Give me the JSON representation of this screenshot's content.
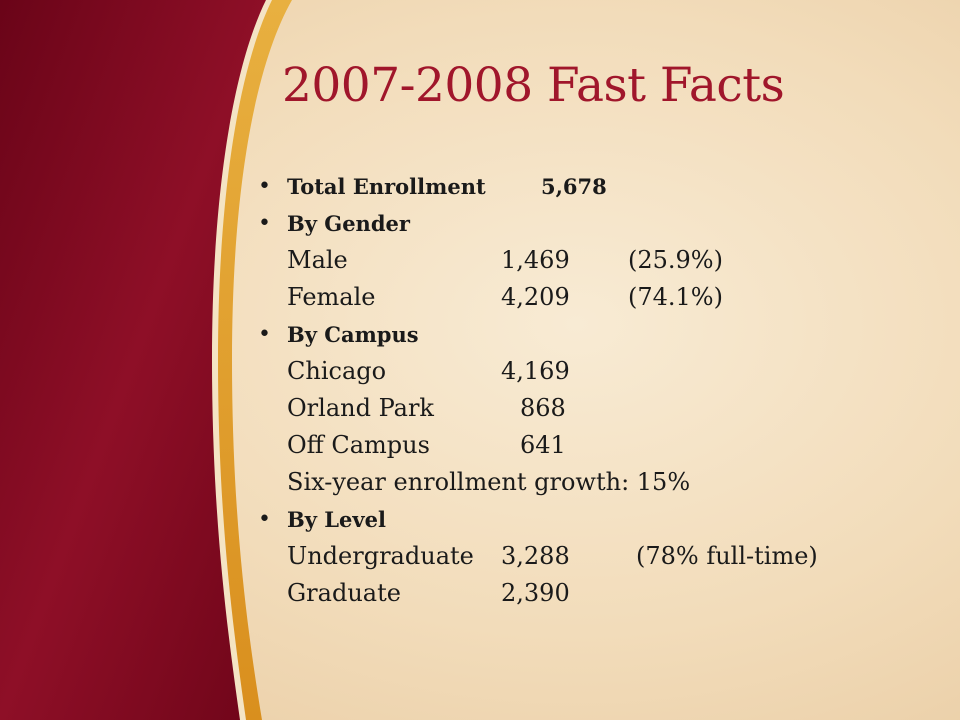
{
  "title": "2007-2008 Fast Facts",
  "items": {
    "total": {
      "label": "Total Enrollment",
      "value": "5,678"
    },
    "gender": {
      "label": "By Gender",
      "rows": [
        {
          "name": "Male",
          "value": "1,469",
          "pct": "(25.9%)"
        },
        {
          "name": "Female",
          "value": "4,209",
          "pct": "(74.1%)"
        }
      ]
    },
    "campus": {
      "label": "By Campus",
      "rows": [
        {
          "name": "Chicago",
          "value": "4,169"
        },
        {
          "name": "Orland Park",
          "value": "868"
        },
        {
          "name": "Off Campus",
          "value": "641"
        }
      ],
      "growth": "Six-year enrollment growth: 15%"
    },
    "level": {
      "label": "By Level",
      "rows": [
        {
          "name": "Undergraduate",
          "value": "3,288",
          "note": "(78% full-time)"
        },
        {
          "name": "Graduate",
          "value": "2,390"
        }
      ]
    }
  },
  "colors": {
    "maroon": "#7d0a22",
    "gold": "#e3a22c",
    "title": "#a0162b",
    "background": "#f5e3c6"
  }
}
